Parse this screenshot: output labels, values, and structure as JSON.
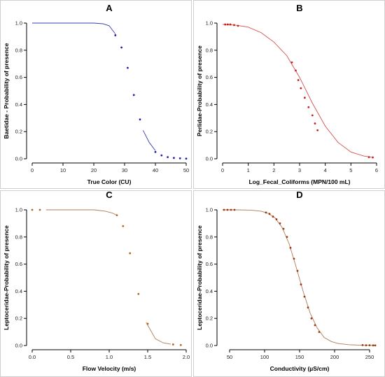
{
  "chart_data": [
    {
      "type": "line",
      "title": "A",
      "xlabel": "True Color (CU)",
      "ylabel": "Baetidae - Probability of presence",
      "xlim": [
        0,
        50
      ],
      "ylim": [
        0,
        1
      ],
      "xticks": [
        "0",
        "10",
        "20",
        "30",
        "40",
        "50"
      ],
      "yticks": [
        "0.0",
        "0.2",
        "0.4",
        "0.6",
        "0.8",
        "1.0"
      ],
      "line_color": "#3b3bb3",
      "point_color": "#1f1fa8",
      "curve_segments": [
        [
          [
            0,
            1.0
          ],
          [
            10,
            1.0
          ],
          [
            20,
            1.0
          ],
          [
            23,
            0.995
          ],
          [
            25,
            0.98
          ],
          [
            27,
            0.92
          ]
        ],
        [
          [
            36,
            0.21
          ],
          [
            38,
            0.12
          ],
          [
            40,
            0.06
          ]
        ]
      ],
      "points": [
        [
          27,
          0.91
        ],
        [
          29,
          0.82
        ],
        [
          31,
          0.67
        ],
        [
          33,
          0.47
        ],
        [
          35,
          0.29
        ],
        [
          40,
          0.05
        ],
        [
          42,
          0.025
        ],
        [
          44,
          0.012
        ],
        [
          46,
          0.006
        ],
        [
          48,
          0.003
        ],
        [
          50,
          0.001
        ]
      ]
    },
    {
      "type": "line",
      "title": "B",
      "xlabel": "Log_Fecal_Coliforms (MPN/100 mL)",
      "ylabel": "Perlidae-Probability of presence",
      "xlim": [
        0,
        6
      ],
      "ylim": [
        0,
        1
      ],
      "xticks": [
        "0",
        "1",
        "2",
        "3",
        "4",
        "5",
        "6"
      ],
      "yticks": [
        "0.0",
        "0.2",
        "0.4",
        "0.6",
        "0.8",
        "1.0"
      ],
      "line_color": "#d45050",
      "point_color": "#c81e1e",
      "curve_segments": [
        [
          [
            0,
            0.99
          ],
          [
            0.5,
            0.985
          ],
          [
            1.0,
            0.97
          ],
          [
            1.5,
            0.93
          ],
          [
            2.0,
            0.86
          ],
          [
            2.5,
            0.76
          ],
          [
            3.0,
            0.6
          ],
          [
            3.5,
            0.41
          ],
          [
            4.0,
            0.24
          ],
          [
            4.5,
            0.12
          ],
          [
            5.0,
            0.05
          ],
          [
            5.5,
            0.02
          ],
          [
            5.8,
            0.012
          ]
        ]
      ],
      "points": [
        [
          0.1,
          0.99
        ],
        [
          0.2,
          0.99
        ],
        [
          0.3,
          0.99
        ],
        [
          0.45,
          0.985
        ],
        [
          0.6,
          0.98
        ],
        [
          2.7,
          0.71
        ],
        [
          2.85,
          0.65
        ],
        [
          2.95,
          0.58
        ],
        [
          3.05,
          0.52
        ],
        [
          3.2,
          0.45
        ],
        [
          3.35,
          0.38
        ],
        [
          3.5,
          0.32
        ],
        [
          3.6,
          0.26
        ],
        [
          3.7,
          0.21
        ],
        [
          5.7,
          0.012
        ],
        [
          5.85,
          0.01
        ]
      ]
    },
    {
      "type": "line",
      "title": "C",
      "xlabel": "Flow Velocity (m/s)",
      "ylabel": "Leptoceridae-Probability of presence",
      "xlim": [
        0,
        2
      ],
      "ylim": [
        0,
        1
      ],
      "xticks": [
        "0.0",
        "0.5",
        "1.0",
        "1.5",
        "2.0"
      ],
      "yticks": [
        "0.0",
        "0.2",
        "0.4",
        "0.6",
        "0.8",
        "1.0"
      ],
      "line_color": "#b07a5a",
      "point_color": "#b5651d",
      "curve_segments": [
        [
          [
            0.18,
            1.0
          ],
          [
            0.5,
            1.0
          ],
          [
            0.8,
            1.0
          ],
          [
            0.95,
            0.99
          ],
          [
            1.05,
            0.975
          ],
          [
            1.1,
            0.96
          ]
        ],
        [
          [
            1.48,
            0.17
          ],
          [
            1.55,
            0.1
          ],
          [
            1.6,
            0.05
          ],
          [
            1.7,
            0.02
          ],
          [
            1.8,
            0.01
          ]
        ]
      ],
      "points": [
        [
          0.0,
          1.0
        ],
        [
          0.1,
          1.0
        ],
        [
          1.1,
          0.96
        ],
        [
          1.18,
          0.88
        ],
        [
          1.27,
          0.68
        ],
        [
          1.38,
          0.38
        ],
        [
          1.5,
          0.16
        ],
        [
          1.83,
          0.008
        ],
        [
          1.93,
          0.004
        ]
      ]
    },
    {
      "type": "line",
      "title": "D",
      "xlabel": "Conductivity (µS/cm)",
      "ylabel": "Leptoceridae-Probability of presence",
      "xlim": [
        40,
        260
      ],
      "ylim": [
        0,
        1
      ],
      "xticks": [
        "50",
        "100",
        "150",
        "200",
        "250"
      ],
      "yticks": [
        "0.0",
        "0.2",
        "0.4",
        "0.6",
        "0.8",
        "1.0"
      ],
      "line_color": "#b07a5a",
      "point_color": "#9c3a10",
      "curve_segments": [
        [
          [
            40,
            1.0
          ],
          [
            60,
            1.0
          ],
          [
            80,
            0.998
          ],
          [
            95,
            0.99
          ],
          [
            105,
            0.975
          ],
          [
            115,
            0.94
          ],
          [
            125,
            0.87
          ],
          [
            135,
            0.75
          ],
          [
            145,
            0.58
          ],
          [
            155,
            0.4
          ],
          [
            165,
            0.24
          ],
          [
            175,
            0.13
          ],
          [
            185,
            0.06
          ],
          [
            195,
            0.03
          ],
          [
            205,
            0.015
          ],
          [
            220,
            0.006
          ],
          [
            240,
            0.002
          ],
          [
            258,
            0.001
          ]
        ]
      ],
      "points": [
        [
          42,
          1.0
        ],
        [
          47,
          1.0
        ],
        [
          52,
          1.0
        ],
        [
          57,
          1.0
        ],
        [
          102,
          0.98
        ],
        [
          107,
          0.97
        ],
        [
          112,
          0.95
        ],
        [
          117,
          0.93
        ],
        [
          122,
          0.9
        ],
        [
          127,
          0.86
        ],
        [
          132,
          0.8
        ],
        [
          137,
          0.72
        ],
        [
          142,
          0.64
        ],
        [
          147,
          0.55
        ],
        [
          152,
          0.45
        ],
        [
          157,
          0.36
        ],
        [
          162,
          0.28
        ],
        [
          167,
          0.2
        ],
        [
          172,
          0.15
        ],
        [
          178,
          0.1
        ],
        [
          240,
          0.003
        ],
        [
          245,
          0.002
        ],
        [
          250,
          0.002
        ],
        [
          255,
          0.001
        ],
        [
          258,
          0.001
        ]
      ]
    }
  ]
}
